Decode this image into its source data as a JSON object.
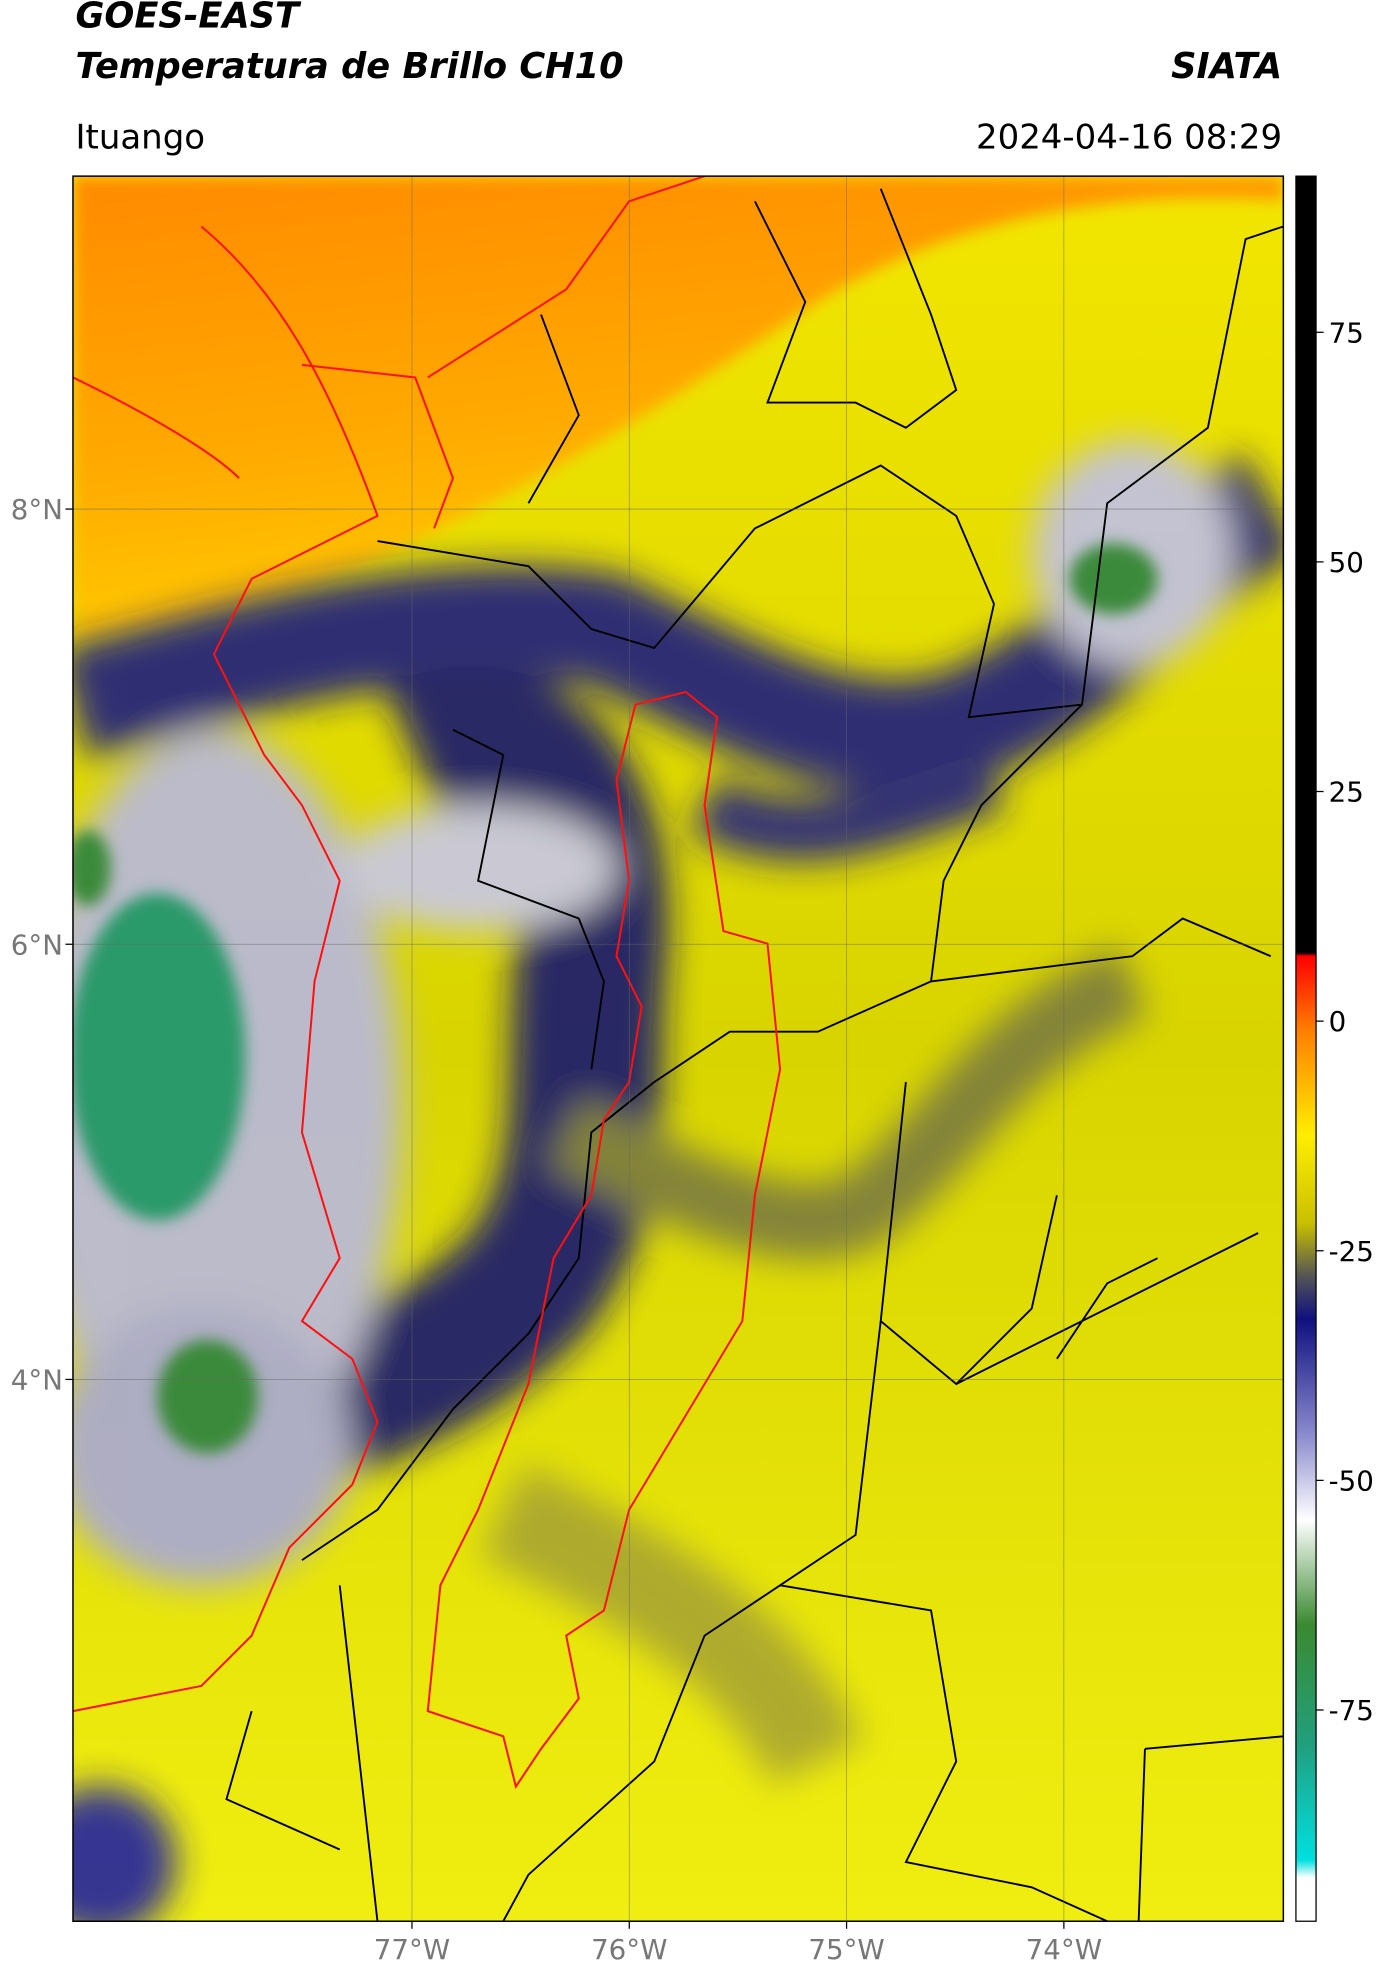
{
  "header": {
    "title": "GOES-EAST",
    "subtitle": "Temperatura de Brillo CH10",
    "brand": "SIATA",
    "location": "Ituango",
    "datetime": "2024-04-16 08:29"
  },
  "map": {
    "lonlim": [
      -78.56,
      -72.99
    ],
    "latlim": [
      1.51,
      9.53
    ],
    "lonticks": [
      {
        "value": -77,
        "label": "77°W"
      },
      {
        "value": -76,
        "label": "76°W"
      },
      {
        "value": -75,
        "label": "75°W"
      },
      {
        "value": -74,
        "label": "74°W"
      }
    ],
    "latticks": [
      {
        "value": 8,
        "label": "8°N"
      },
      {
        "value": 6,
        "label": "6°N"
      },
      {
        "value": 4,
        "label": "4°N"
      }
    ],
    "grid": true
  },
  "colorbar": {
    "lim": [
      -98,
      92
    ],
    "ticks": [
      75,
      50,
      25,
      0,
      -25,
      -50,
      -75
    ]
  }
}
